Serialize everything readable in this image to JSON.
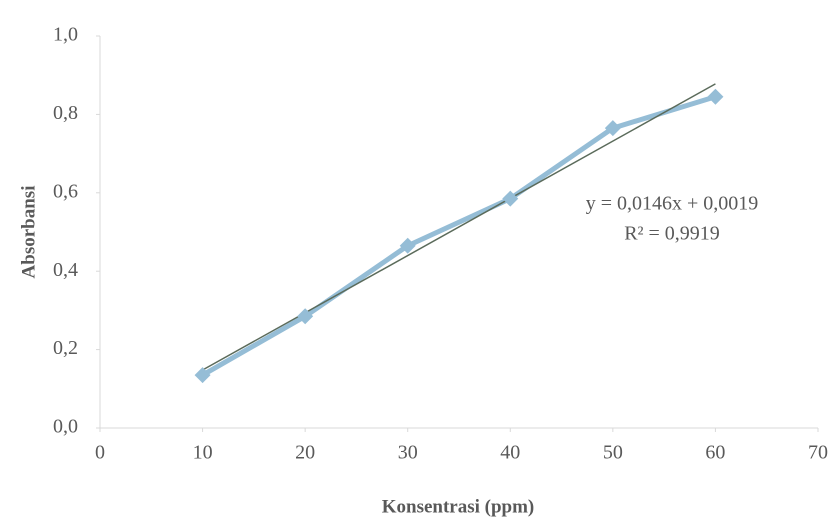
{
  "chart_data": {
    "type": "scatter-line",
    "x": [
      10,
      20,
      30,
      40,
      50,
      60
    ],
    "series": [
      {
        "color": "#95bdd6",
        "values": [
          0.135,
          0.285,
          0.465,
          0.585,
          0.765,
          0.845
        ]
      }
    ],
    "xlabel": "Konsentrasi (ppm)",
    "ylabel": "Absorbansi",
    "xlim": [
      0,
      70
    ],
    "xticks": [
      0,
      10,
      20,
      30,
      40,
      50,
      60,
      70
    ],
    "ylim": [
      0,
      1
    ],
    "yticks": [
      {
        "value": 0,
        "label": "0,0"
      },
      {
        "value": 0.2,
        "label": "0,2"
      },
      {
        "value": 0.4,
        "label": "0,4"
      },
      {
        "value": 0.6,
        "label": "0,6"
      },
      {
        "value": 0.8,
        "label": "0,8"
      },
      {
        "value": 1,
        "label": "1,0"
      }
    ],
    "trendline": {
      "slope": 0.0146,
      "intercept": 0.0019,
      "color": "#5b6b5b",
      "equation": "y = 0,0146x + 0,0019",
      "r_squared": "R² = 0,9919"
    }
  }
}
